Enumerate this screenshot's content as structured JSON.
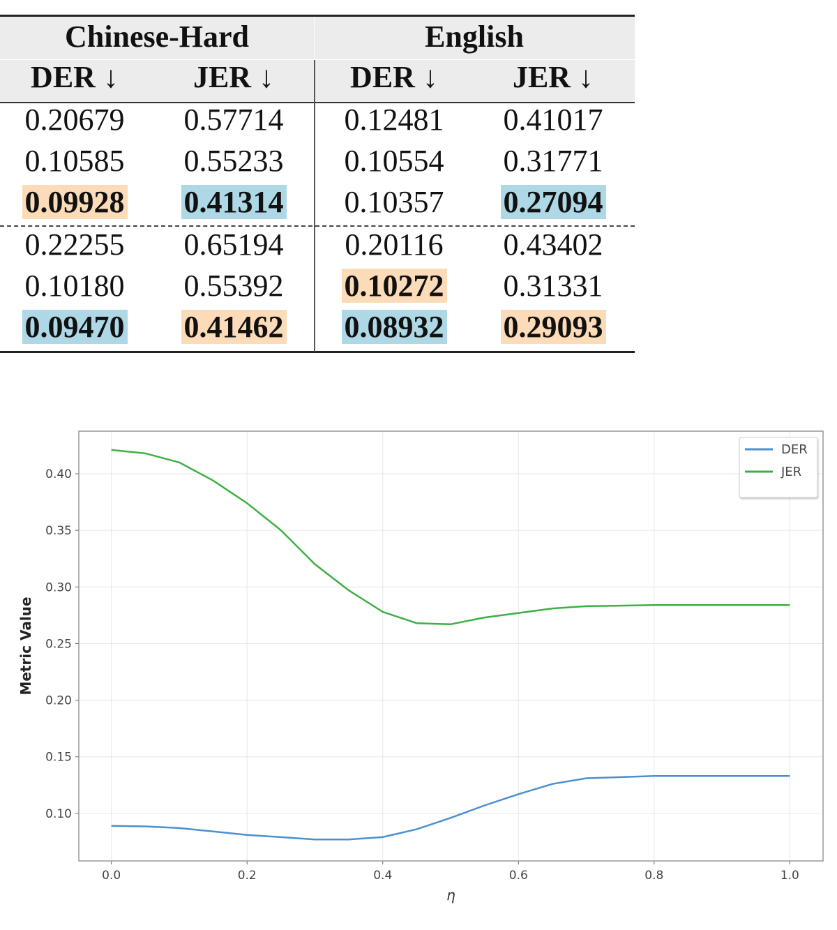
{
  "table": {
    "groups": [
      "Chinese-Hard",
      "English"
    ],
    "columns": [
      "DER ↓",
      "JER ↓",
      "DER ↓",
      "JER ↓"
    ],
    "rows": [
      [
        "0.20679",
        "0.57714",
        "0.12481",
        "0.41017"
      ],
      [
        "0.10585",
        "0.55233",
        "0.10554",
        "0.31771"
      ],
      [
        {
          "text": "0.09928",
          "highlight": "#fcdcb8"
        },
        {
          "text": "0.41314",
          "highlight": "#aed8e6"
        },
        "0.10357",
        {
          "text": "0.27094",
          "highlight": "#aed8e6"
        }
      ],
      [
        "0.22255",
        "0.65194",
        "0.20116",
        "0.43402"
      ],
      [
        "0.10180",
        "0.55392",
        {
          "text": "0.10272",
          "highlight": "#fcdcb8"
        },
        "0.31331"
      ],
      [
        {
          "text": "0.09470",
          "highlight": "#aed8e6"
        },
        {
          "text": "0.41462",
          "highlight": "#fcdcb8"
        },
        {
          "text": "0.08932",
          "highlight": "#aed8e6"
        },
        {
          "text": "0.29093",
          "highlight": "#fcdcb8"
        }
      ]
    ]
  },
  "chart_data": {
    "type": "line",
    "xlabel": "η",
    "ylabel": "Metric Value",
    "x": [
      0,
      0.05,
      0.1,
      0.15,
      0.2,
      0.25,
      0.3,
      0.35,
      0.4,
      0.45,
      0.5,
      0.55,
      0.6,
      0.65,
      0.7,
      0.8,
      0.9,
      1.0
    ],
    "series": [
      {
        "name": "DER",
        "color": "#4a90d0",
        "values": [
          0.089,
          0.0885,
          0.087,
          0.084,
          0.081,
          0.079,
          0.077,
          0.077,
          0.079,
          0.086,
          0.096,
          0.107,
          0.117,
          0.126,
          0.131,
          0.133,
          0.133,
          0.133
        ]
      },
      {
        "name": "JER",
        "color": "#3cb043",
        "values": [
          0.421,
          0.418,
          0.41,
          0.394,
          0.374,
          0.35,
          0.32,
          0.297,
          0.278,
          0.268,
          0.267,
          0.273,
          0.277,
          0.281,
          0.283,
          0.284,
          0.284,
          0.284
        ]
      }
    ],
    "xlim": [
      -0.048,
      1.049
    ],
    "ylim": [
      0.058,
      0.4376
    ],
    "xticks": [
      {
        "value": 0,
        "label": "0.0"
      },
      0.2,
      0.4,
      0.6,
      0.8,
      {
        "value": 1,
        "label": "1.0"
      }
    ],
    "yticks": [
      {
        "value": 0.1,
        "label": "0.10"
      },
      0.15,
      {
        "value": 0.2,
        "label": "0.20"
      },
      0.25,
      {
        "value": 0.3,
        "label": "0.30"
      },
      0.35,
      {
        "value": 0.4,
        "label": "0.40"
      }
    ],
    "grid": true,
    "legend": "upper right"
  }
}
